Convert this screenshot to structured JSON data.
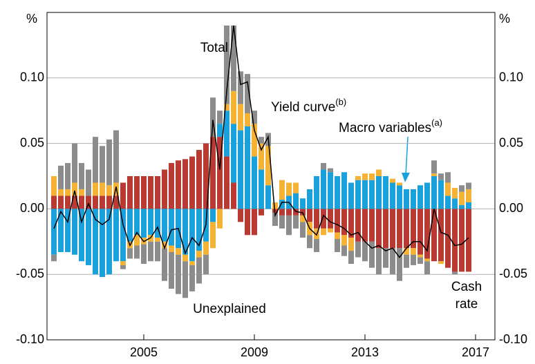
{
  "chart_data": {
    "type": "bar",
    "stacked": true,
    "y_unit": "%",
    "x": [
      2001.75,
      2002,
      2002.25,
      2002.5,
      2002.75,
      2003,
      2003.25,
      2003.5,
      2003.75,
      2004,
      2004.25,
      2004.5,
      2004.75,
      2005,
      2005.25,
      2005.5,
      2005.75,
      2006,
      2006.25,
      2006.5,
      2006.75,
      2007,
      2007.25,
      2007.5,
      2007.75,
      2008,
      2008.25,
      2008.5,
      2008.75,
      2009,
      2009.25,
      2009.5,
      2009.75,
      2010,
      2010.25,
      2010.5,
      2010.75,
      2011,
      2011.25,
      2011.5,
      2011.75,
      2012,
      2012.25,
      2012.5,
      2012.75,
      2013,
      2013.25,
      2013.5,
      2013.75,
      2014,
      2014.25,
      2014.5,
      2014.75,
      2015,
      2015.25,
      2015.5,
      2015.75,
      2016,
      2016.25,
      2016.5,
      2016.75
    ],
    "xlim": [
      2001.5,
      2017.7
    ],
    "xticks": [
      2005,
      2009,
      2013,
      2017
    ],
    "ylim": [
      -0.1,
      0.15
    ],
    "yticks": [
      {
        "value": -0.1,
        "label": "-0.10"
      },
      {
        "value": -0.05,
        "label": "-0.05"
      },
      {
        "value": 0,
        "label": "0.00"
      },
      {
        "value": 0.05,
        "label": "0.05"
      },
      {
        "value": 0.1,
        "label": "0.10"
      }
    ],
    "grid": true,
    "series": [
      {
        "name": "Cash rate",
        "color": "#b93a32",
        "values": [
          0.01,
          0.01,
          0.01,
          0.01,
          0.01,
          0.01,
          0.01,
          0.01,
          0.01,
          0.01,
          0.02,
          0.025,
          0.025,
          0.025,
          0.025,
          0.025,
          0.03,
          0.035,
          0.037,
          0.038,
          0.04,
          0.045,
          0.05,
          0.055,
          0.055,
          0.04,
          0.02,
          -0.01,
          -0.02,
          -0.02,
          -0.005,
          0,
          -0.003,
          -0.005,
          -0.005,
          -0.005,
          -0.005,
          -0.01,
          -0.015,
          -0.015,
          -0.015,
          -0.018,
          -0.02,
          -0.022,
          -0.025,
          -0.025,
          -0.025,
          -0.03,
          -0.03,
          -0.03,
          -0.03,
          -0.03,
          -0.03,
          -0.035,
          -0.038,
          -0.04,
          -0.04,
          -0.045,
          -0.048,
          -0.048,
          -0.048
        ]
      },
      {
        "name": "Macro variables",
        "note": "(a)",
        "color": "#1aa1dc",
        "values": [
          -0.035,
          -0.033,
          -0.033,
          -0.035,
          -0.04,
          -0.043,
          -0.05,
          -0.052,
          -0.05,
          -0.04,
          -0.04,
          -0.025,
          -0.02,
          -0.022,
          -0.02,
          -0.022,
          -0.025,
          -0.028,
          -0.03,
          -0.035,
          -0.04,
          -0.032,
          -0.025,
          -0.01,
          0.01,
          0.035,
          0.045,
          0.06,
          0.063,
          0.04,
          0.03,
          0.018,
          0,
          0.007,
          0.01,
          0.012,
          0.008,
          0.015,
          0.025,
          0.03,
          0.028,
          0.025,
          0.028,
          0.02,
          0.022,
          0.022,
          0.022,
          0.025,
          0.025,
          0.02,
          0.018,
          0.015,
          0.015,
          0.018,
          0.02,
          0.025,
          0.022,
          0.01,
          0.008,
          0.003,
          0.005
        ]
      },
      {
        "name": "Yield curve",
        "note": "(b)",
        "color": "#f5b335",
        "values": [
          0.015,
          0.005,
          0.005,
          0.01,
          0.005,
          0,
          0.01,
          0.01,
          0.008,
          0.01,
          -0.003,
          -0.005,
          -0.008,
          -0.005,
          -0.005,
          -0.003,
          -0.005,
          -0.005,
          -0.005,
          -0.005,
          -0.003,
          -0.005,
          -0.01,
          -0.02,
          -0.015,
          0.005,
          0.025,
          0.02,
          0.01,
          0.025,
          0.02,
          0.03,
          0.005,
          0.015,
          0.01,
          0.008,
          -0.005,
          -0.01,
          -0.008,
          -0.005,
          -0.003,
          -0.005,
          -0.008,
          -0.01,
          0.003,
          0.005,
          0.005,
          0.005,
          0,
          0.003,
          0.002,
          -0.005,
          -0.005,
          -0.002,
          -0.002,
          0.002,
          -0.002,
          0.01,
          0.008,
          0.01,
          0.01
        ]
      },
      {
        "name": "Unexplained",
        "color": "#8c8c8c",
        "values": [
          -0.005,
          0.018,
          0.02,
          0.03,
          0.02,
          0.02,
          0.035,
          0.028,
          0.035,
          0.04,
          -0.003,
          -0.008,
          -0.01,
          -0.015,
          -0.015,
          -0.015,
          -0.025,
          -0.028,
          -0.03,
          -0.028,
          -0.02,
          -0.02,
          -0.015,
          0.03,
          0.01,
          0.06,
          0.05,
          0.025,
          0.03,
          0.01,
          0.005,
          0.01,
          -0.01,
          -0.01,
          -0.015,
          -0.01,
          -0.012,
          -0.01,
          -0.01,
          0.005,
          0.003,
          -0.01,
          -0.008,
          -0.01,
          -0.012,
          -0.015,
          -0.02,
          -0.02,
          -0.015,
          -0.02,
          -0.025,
          -0.01,
          -0.008,
          -0.005,
          -0.01,
          0.01,
          0.005,
          0.008,
          -0.002,
          0.005,
          0.005
        ]
      }
    ],
    "line": {
      "name": "Total",
      "color": "#000000",
      "values": [
        -0.015,
        -0.002,
        -0.01,
        0.014,
        -0.01,
        0.004,
        -0.008,
        -0.012,
        -0.008,
        0.017,
        -0.012,
        -0.028,
        -0.018,
        -0.025,
        -0.022,
        -0.014,
        -0.03,
        -0.016,
        -0.015,
        -0.034,
        -0.022,
        -0.028,
        -0.012,
        0.068,
        0.03,
        0.09,
        0.14,
        0.095,
        0.097,
        0.06,
        0.045,
        0.055,
        -0.005,
        0.005,
        0.005,
        -0.002,
        -0.003,
        -0.015,
        -0.02,
        -0.005,
        -0.01,
        -0.012,
        -0.015,
        -0.02,
        -0.018,
        -0.025,
        -0.03,
        -0.028,
        -0.032,
        -0.03,
        -0.037,
        -0.03,
        -0.025,
        -0.025,
        -0.032,
        0,
        -0.018,
        -0.02,
        -0.028,
        -0.027,
        -0.022
      ]
    }
  }
}
